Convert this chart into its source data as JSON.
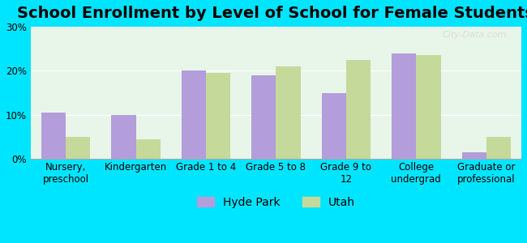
{
  "title": "School Enrollment by Level of School for Female Students",
  "categories": [
    "Nursery,\npreschool",
    "Kindergarten",
    "Grade 1 to 4",
    "Grade 5 to 8",
    "Grade 9 to\n12",
    "College\nundergrad",
    "Graduate or\nprofessional"
  ],
  "hyde_park": [
    10.5,
    10.0,
    20.0,
    19.0,
    15.0,
    24.0,
    1.5
  ],
  "utah": [
    5.0,
    4.5,
    19.5,
    21.0,
    22.5,
    23.5,
    5.0
  ],
  "hyde_park_color": "#b39ddb",
  "utah_color": "#c5d99b",
  "background_outer": "#00e5ff",
  "background_inner": "#e8f5e9",
  "ylim": [
    0,
    30
  ],
  "yticks": [
    0,
    10,
    20,
    30
  ],
  "ytick_labels": [
    "0%",
    "10%",
    "20%",
    "30%"
  ],
  "legend_labels": [
    "Hyde Park",
    "Utah"
  ],
  "bar_width": 0.35,
  "title_fontsize": 14,
  "tick_fontsize": 8.5,
  "legend_fontsize": 10,
  "watermark": "City-Data.com"
}
